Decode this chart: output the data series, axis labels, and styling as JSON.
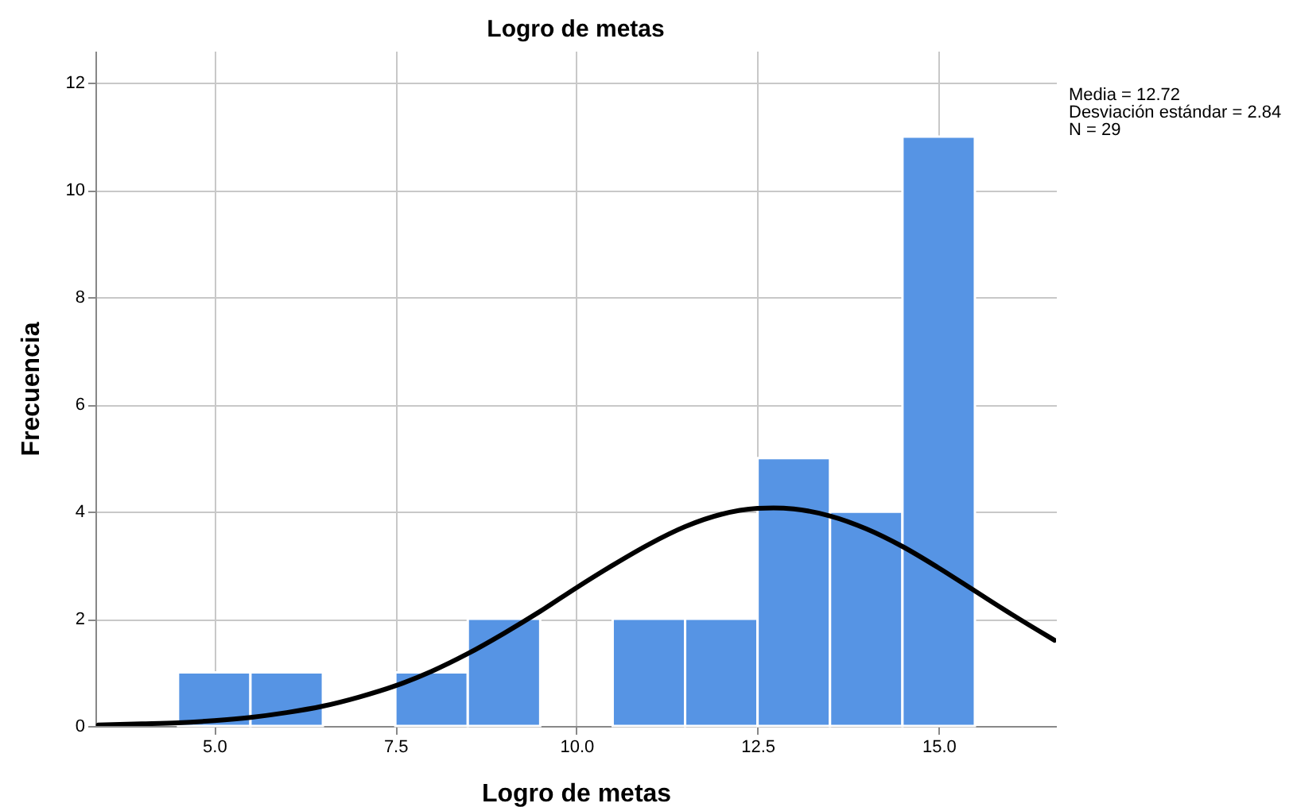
{
  "chart_data": {
    "type": "histogram",
    "title": "Logro de metas",
    "xlabel": "Logro de metas",
    "ylabel": "Frecuencia",
    "bins": [
      4.5,
      5.5,
      6.5,
      7.5,
      8.5,
      9.5,
      10.5,
      11.5,
      12.5,
      13.5,
      14.5,
      15.5
    ],
    "values": [
      1,
      1,
      0,
      1,
      2,
      0,
      2,
      2,
      5,
      4,
      11
    ],
    "color": "#5694e4",
    "series": [
      {
        "type": "line",
        "color": "#000000",
        "x": [
          3.4,
          4,
          4.5,
          5,
          5.5,
          6,
          6.5,
          7,
          7.5,
          8,
          8.5,
          9,
          9.5,
          10,
          10.5,
          11,
          11.5,
          12,
          12.5,
          12.72,
          13,
          13.5,
          14,
          14.5,
          15,
          15.5,
          16,
          16.5,
          16.6
        ],
        "values": [
          0.02,
          0.04,
          0.06,
          0.1,
          0.16,
          0.25,
          0.37,
          0.54,
          0.75,
          1.02,
          1.35,
          1.73,
          2.14,
          2.58,
          3.0,
          3.39,
          3.72,
          3.95,
          4.06,
          4.07,
          4.05,
          3.92,
          3.68,
          3.35,
          2.95,
          2.52,
          2.09,
          1.68,
          1.6
        ]
      }
    ],
    "xlim": [
      3.36,
      16.62
    ],
    "xticks": [
      {
        "value": 5,
        "label": "5.0"
      },
      {
        "value": 7.5,
        "label": "7.5"
      },
      {
        "value": 10,
        "label": "10.0"
      },
      {
        "value": 12.5,
        "label": "12.5"
      },
      {
        "value": 15,
        "label": "15.0"
      }
    ],
    "ylim": [
      0,
      12.6
    ],
    "yticks": [
      0,
      2,
      4,
      6,
      8,
      10,
      12
    ],
    "grid": true,
    "annotations": [
      "Media = 12.72",
      "Desviación estándar = 2.84",
      "N = 29"
    ]
  }
}
